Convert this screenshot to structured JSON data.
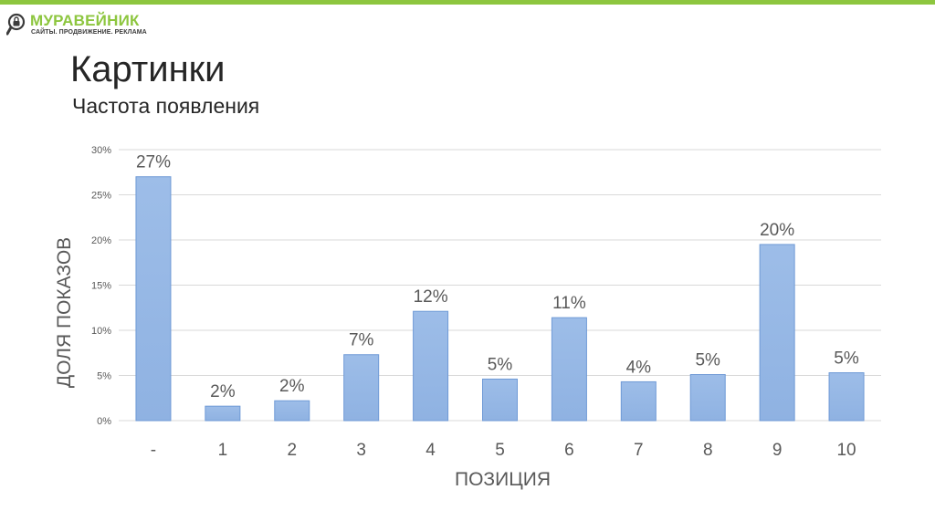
{
  "logo": {
    "name": "МУРАВЕЙНИК",
    "tagline": "САЙТЫ. ПРОДВИЖЕНИЕ. РЕКЛАМА"
  },
  "page": {
    "title": "Картинки",
    "subtitle": "Частота появления"
  },
  "colors": {
    "accent": "#8dc63f",
    "bar": "#9dbde8",
    "bar_edge": "#6f9ad6",
    "grid": "#d9d9d9",
    "axis_text": "#595959"
  },
  "chart_data": {
    "type": "bar",
    "xlabel": "ПОЗИЦИЯ",
    "ylabel": "ДОЛЯ ПОКАЗОВ",
    "categories": [
      "-",
      "1",
      "2",
      "3",
      "4",
      "5",
      "6",
      "7",
      "8",
      "9",
      "10"
    ],
    "values": [
      27,
      1.6,
      2.2,
      7.3,
      12.1,
      4.6,
      11.4,
      4.3,
      5.1,
      19.5,
      5.3
    ],
    "data_labels": [
      "27%",
      "2%",
      "2%",
      "7%",
      "12%",
      "5%",
      "11%",
      "4%",
      "5%",
      "20%",
      "5%"
    ],
    "y_ticks": [
      "0%",
      "5%",
      "10%",
      "15%",
      "20%",
      "25%",
      "30%"
    ],
    "ylim": [
      0,
      30
    ],
    "grid": true
  }
}
